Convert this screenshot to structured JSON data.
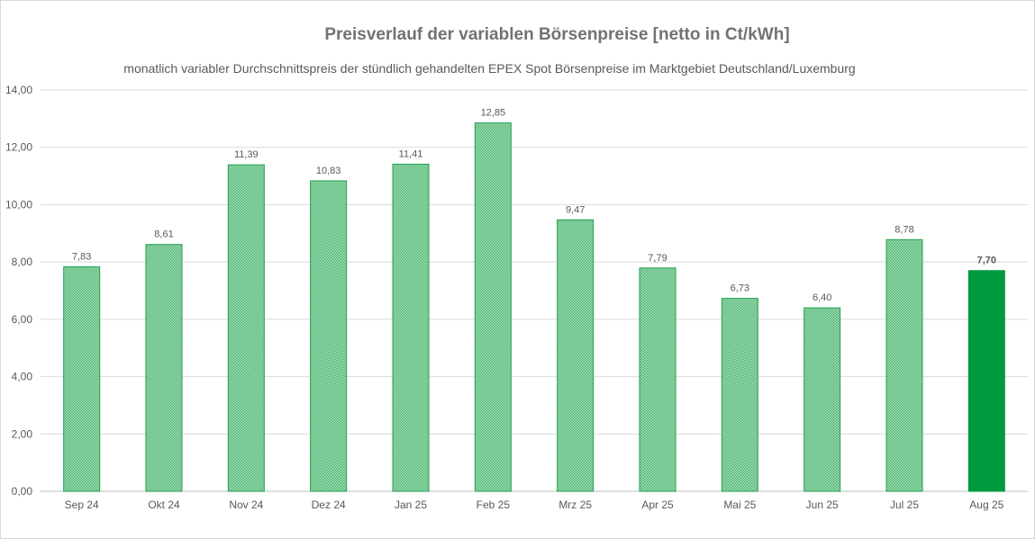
{
  "chart_data": {
    "type": "bar",
    "title": "Preisverlauf der variablen Börsenpreise [netto in Ct/kWh]",
    "subtitle": "monatlich variabler Durchschnittspreis der stündlich gehandelten EPEX Spot Börsenpreise im Marktgebiet Deutschland/Luxemburg",
    "categories": [
      "Sep 24",
      "Okt 24",
      "Nov 24",
      "Dez 24",
      "Jan 25",
      "Feb 25",
      "Mrz 25",
      "Apr 25",
      "Mai 25",
      "Jun 25",
      "Jul 25",
      "Aug 25"
    ],
    "values": [
      7.83,
      8.61,
      11.39,
      10.83,
      11.41,
      12.85,
      9.47,
      7.79,
      6.73,
      6.4,
      8.78,
      7.7
    ],
    "value_labels": [
      "7,83",
      "8,61",
      "11,39",
      "10,83",
      "11,41",
      "12,85",
      "9,47",
      "7,79",
      "6,73",
      "6,40",
      "8,78",
      "7,70"
    ],
    "yticks": [
      "0,00",
      "2,00",
      "4,00",
      "6,00",
      "8,00",
      "10,00",
      "12,00",
      "14,00"
    ],
    "ytick_values": [
      0,
      2,
      4,
      6,
      8,
      10,
      12,
      14
    ],
    "ylim": [
      0,
      14
    ],
    "grid": true,
    "highlight_index": 11,
    "colors": {
      "bar_fill_light": "#86cf9f",
      "bar_stroke": "#1fa14f",
      "bar_highlight": "#009a3e",
      "grid": "#d9d9d9",
      "axis": "#bfbfbf"
    }
  }
}
